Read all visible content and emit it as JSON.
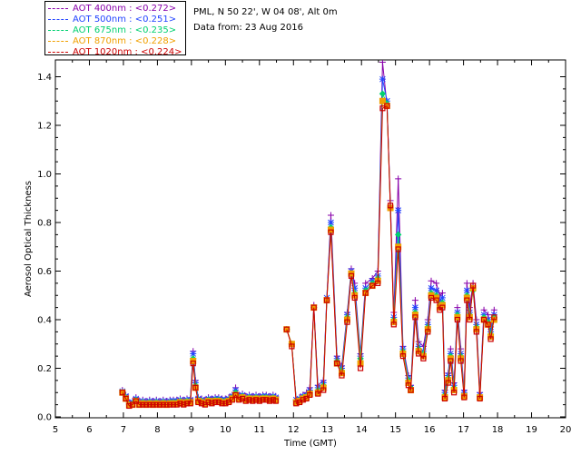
{
  "header": {
    "site_line": "PML, N 50 22', W 04 08', Alt 0m",
    "date_line": "Data from: 23 Aug 2016"
  },
  "legend": [
    {
      "label": "AOT  400nm : <0.272>",
      "color": "#8800aa"
    },
    {
      "label": "AOT  500nm : <0.251>",
      "color": "#2244ff"
    },
    {
      "label": "AOT  675nm : <0.235>",
      "color": "#00d070"
    },
    {
      "label": "AOT  870nm : <0.228>",
      "color": "#f0a000"
    },
    {
      "label": "AOT 1020nm : <0.224>",
      "color": "#cc0000"
    }
  ],
  "chart_data": {
    "type": "line",
    "title": "",
    "xlabel": "Time (GMT)",
    "ylabel": "Aerosol Optical Thickness",
    "xlim": [
      5,
      20
    ],
    "ylim": [
      0.0,
      1.45
    ],
    "xticks": [
      5,
      6,
      7,
      8,
      9,
      10,
      11,
      12,
      13,
      14,
      15,
      16,
      17,
      18,
      19,
      20
    ],
    "yticks": [
      "0.0",
      "0.2",
      "0.4",
      "0.6",
      "0.8",
      "1.0",
      "1.2",
      "1.4"
    ],
    "ytick_values": [
      0.0,
      0.2,
      0.4,
      0.6,
      0.8,
      1.0,
      1.2,
      1.4
    ],
    "grid": false,
    "x": [
      6.97,
      7.07,
      7.17,
      7.27,
      7.37,
      7.47,
      7.57,
      7.67,
      7.77,
      7.87,
      7.97,
      8.07,
      8.17,
      8.27,
      8.37,
      8.47,
      8.57,
      8.67,
      8.77,
      8.87,
      8.97,
      9.05,
      9.12,
      9.2,
      9.3,
      9.4,
      9.5,
      9.6,
      9.7,
      9.8,
      9.9,
      10.0,
      10.1,
      10.2,
      10.3,
      10.4,
      10.5,
      10.6,
      10.7,
      10.8,
      10.9,
      11.0,
      11.1,
      11.2,
      11.3,
      11.4,
      11.48,
      null,
      11.8,
      11.95,
      12.08,
      12.18,
      12.28,
      12.38,
      12.48,
      12.6,
      12.72,
      12.88,
      12.98,
      13.1,
      13.28,
      13.42,
      13.58,
      13.7,
      13.8,
      13.97,
      14.12,
      14.32,
      14.48,
      14.62,
      14.75,
      14.85,
      14.95,
      15.08,
      15.22,
      15.38,
      15.45,
      15.58,
      15.68,
      15.82,
      15.95,
      16.05,
      16.2,
      16.3,
      16.38,
      16.45,
      16.55,
      16.62,
      16.72,
      16.82,
      16.92,
      17.02,
      17.1,
      17.18,
      17.28,
      17.38,
      17.48,
      17.6,
      17.72,
      17.8,
      17.9
    ],
    "series": [
      {
        "name": "AOT  400nm : <0.272>",
        "color": "#8800aa",
        "values": [
          0.11,
          0.09,
          0.06,
          0.065,
          0.08,
          0.065,
          0.07,
          0.065,
          0.07,
          0.065,
          0.07,
          0.065,
          0.07,
          0.065,
          0.07,
          0.07,
          0.07,
          0.075,
          0.07,
          0.075,
          0.075,
          0.27,
          0.15,
          0.08,
          0.075,
          0.07,
          0.08,
          0.075,
          0.08,
          0.08,
          0.075,
          0.075,
          0.08,
          0.09,
          0.12,
          0.09,
          0.095,
          0.085,
          0.09,
          0.085,
          0.09,
          0.085,
          0.09,
          0.09,
          0.085,
          0.09,
          0.085,
          null,
          0.36,
          0.3,
          0.07,
          0.08,
          0.09,
          0.1,
          0.12,
          0.46,
          0.13,
          0.15,
          0.49,
          0.83,
          0.25,
          0.21,
          0.43,
          0.61,
          0.55,
          0.26,
          0.55,
          0.57,
          0.6,
          1.46,
          1.28,
          0.89,
          0.43,
          0.98,
          0.29,
          0.17,
          0.13,
          0.48,
          0.31,
          0.29,
          0.4,
          0.56,
          0.55,
          0.5,
          0.51,
          0.11,
          0.18,
          0.28,
          0.14,
          0.45,
          0.28,
          0.11,
          0.55,
          0.45,
          0.55,
          0.4,
          0.1,
          0.44,
          0.42,
          0.37,
          0.44
        ]
      },
      {
        "name": "AOT  500nm : <0.251>",
        "color": "#2244ff",
        "values": [
          0.105,
          0.085,
          0.055,
          0.06,
          0.075,
          0.06,
          0.065,
          0.06,
          0.065,
          0.06,
          0.065,
          0.06,
          0.065,
          0.06,
          0.065,
          0.065,
          0.065,
          0.07,
          0.065,
          0.07,
          0.07,
          0.26,
          0.14,
          0.075,
          0.07,
          0.065,
          0.075,
          0.07,
          0.075,
          0.075,
          0.07,
          0.07,
          0.075,
          0.085,
          0.11,
          0.085,
          0.09,
          0.08,
          0.085,
          0.08,
          0.085,
          0.08,
          0.085,
          0.085,
          0.08,
          0.085,
          0.08,
          null,
          0.36,
          0.3,
          0.07,
          0.075,
          0.085,
          0.09,
          0.11,
          0.45,
          0.12,
          0.14,
          0.49,
          0.8,
          0.24,
          0.2,
          0.42,
          0.6,
          0.53,
          0.25,
          0.53,
          0.56,
          0.58,
          1.39,
          1.3,
          0.86,
          0.41,
          0.85,
          0.28,
          0.16,
          0.12,
          0.45,
          0.29,
          0.27,
          0.38,
          0.53,
          0.52,
          0.48,
          0.49,
          0.1,
          0.17,
          0.26,
          0.13,
          0.43,
          0.26,
          0.1,
          0.52,
          0.43,
          0.53,
          0.38,
          0.09,
          0.42,
          0.4,
          0.35,
          0.42
        ]
      },
      {
        "name": "AOT  675nm : <0.235>",
        "color": "#00d070",
        "values": [
          0.1,
          0.08,
          0.05,
          0.055,
          0.07,
          0.055,
          0.06,
          0.055,
          0.06,
          0.055,
          0.06,
          0.055,
          0.06,
          0.055,
          0.06,
          0.06,
          0.06,
          0.065,
          0.06,
          0.065,
          0.065,
          0.24,
          0.13,
          0.07,
          0.065,
          0.06,
          0.07,
          0.065,
          0.07,
          0.07,
          0.065,
          0.065,
          0.07,
          0.08,
          0.1,
          0.08,
          0.085,
          0.075,
          0.08,
          0.075,
          0.08,
          0.075,
          0.08,
          0.08,
          0.075,
          0.08,
          0.075,
          null,
          0.36,
          0.3,
          0.065,
          0.07,
          0.08,
          0.085,
          0.1,
          0.45,
          0.11,
          0.13,
          0.48,
          0.78,
          0.23,
          0.19,
          0.41,
          0.59,
          0.51,
          0.24,
          0.52,
          0.55,
          0.57,
          1.33,
          1.29,
          0.86,
          0.4,
          0.75,
          0.27,
          0.15,
          0.12,
          0.43,
          0.28,
          0.26,
          0.37,
          0.51,
          0.5,
          0.46,
          0.47,
          0.09,
          0.16,
          0.25,
          0.12,
          0.42,
          0.25,
          0.09,
          0.5,
          0.42,
          0.52,
          0.37,
          0.085,
          0.41,
          0.39,
          0.34,
          0.41
        ]
      },
      {
        "name": "AOT  870nm : <0.228>",
        "color": "#f0a000",
        "values": [
          0.1,
          0.075,
          0.048,
          0.05,
          0.065,
          0.05,
          0.055,
          0.05,
          0.055,
          0.05,
          0.055,
          0.05,
          0.055,
          0.05,
          0.055,
          0.055,
          0.055,
          0.06,
          0.055,
          0.06,
          0.06,
          0.23,
          0.12,
          0.065,
          0.06,
          0.055,
          0.065,
          0.06,
          0.065,
          0.065,
          0.06,
          0.06,
          0.065,
          0.075,
          0.09,
          0.075,
          0.08,
          0.07,
          0.075,
          0.07,
          0.075,
          0.07,
          0.075,
          0.075,
          0.07,
          0.075,
          0.07,
          null,
          0.36,
          0.3,
          0.06,
          0.065,
          0.075,
          0.08,
          0.095,
          0.45,
          0.1,
          0.12,
          0.48,
          0.77,
          0.22,
          0.18,
          0.4,
          0.59,
          0.5,
          0.22,
          0.51,
          0.54,
          0.56,
          1.3,
          1.28,
          0.86,
          0.39,
          0.7,
          0.26,
          0.14,
          0.11,
          0.42,
          0.27,
          0.25,
          0.36,
          0.5,
          0.49,
          0.45,
          0.46,
          0.08,
          0.15,
          0.24,
          0.11,
          0.41,
          0.24,
          0.085,
          0.49,
          0.41,
          0.53,
          0.36,
          0.08,
          0.4,
          0.38,
          0.33,
          0.4
        ]
      },
      {
        "name": "AOT 1020nm : <0.224>",
        "color": "#cc0000",
        "values": [
          0.1,
          0.075,
          0.045,
          0.05,
          0.065,
          0.05,
          0.05,
          0.05,
          0.05,
          0.05,
          0.05,
          0.05,
          0.05,
          0.05,
          0.05,
          0.05,
          0.05,
          0.055,
          0.05,
          0.055,
          0.055,
          0.22,
          0.12,
          0.06,
          0.055,
          0.05,
          0.06,
          0.055,
          0.06,
          0.06,
          0.055,
          0.055,
          0.06,
          0.07,
          0.09,
          0.07,
          0.075,
          0.065,
          0.07,
          0.065,
          0.07,
          0.065,
          0.07,
          0.07,
          0.065,
          0.07,
          0.065,
          null,
          0.36,
          0.29,
          0.055,
          0.06,
          0.07,
          0.075,
          0.09,
          0.45,
          0.095,
          0.11,
          0.48,
          0.76,
          0.22,
          0.17,
          0.39,
          0.58,
          0.49,
          0.2,
          0.51,
          0.54,
          0.55,
          1.27,
          1.28,
          0.87,
          0.38,
          0.69,
          0.25,
          0.13,
          0.11,
          0.41,
          0.26,
          0.24,
          0.35,
          0.49,
          0.48,
          0.44,
          0.45,
          0.075,
          0.14,
          0.23,
          0.1,
          0.4,
          0.23,
          0.08,
          0.48,
          0.4,
          0.54,
          0.35,
          0.075,
          0.4,
          0.38,
          0.32,
          0.41
        ]
      }
    ]
  }
}
